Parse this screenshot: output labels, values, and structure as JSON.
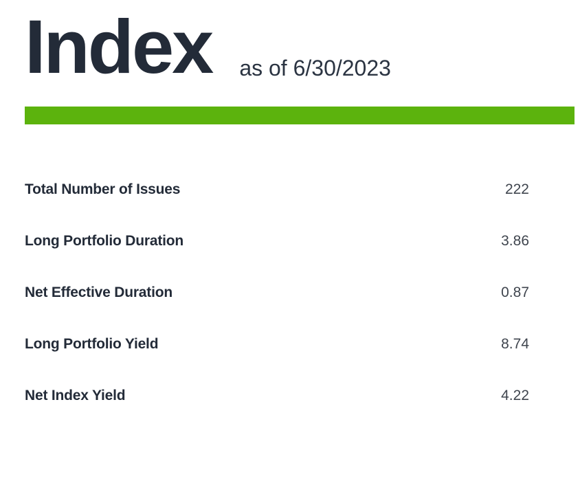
{
  "header": {
    "title": "Index",
    "subtitle": "as of 6/30/2023"
  },
  "accent": {
    "bar_color": "#5cb30d"
  },
  "table": {
    "rows": [
      {
        "label": "Total Number of Issues",
        "value": "222"
      },
      {
        "label": "Long Portfolio Duration",
        "value": "3.86"
      },
      {
        "label": "Net Effective Duration",
        "value": "0.87"
      },
      {
        "label": "Long Portfolio Yield",
        "value": "8.74"
      },
      {
        "label": "Net Index Yield",
        "value": "4.22"
      }
    ]
  }
}
